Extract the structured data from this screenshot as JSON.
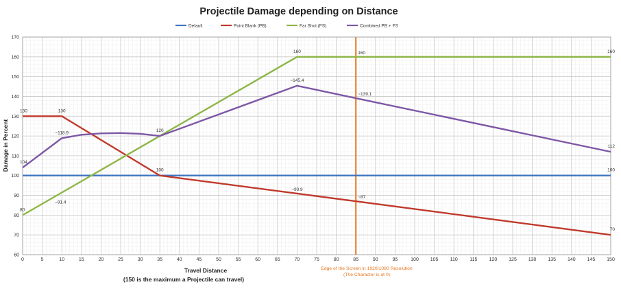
{
  "chart_data": {
    "type": "line",
    "title": "Projectile Damage depending on Distance",
    "xlabel": "Travel Distance",
    "xlabel_note": "(150 is the maximum a Projectile can travel)",
    "ylabel": "Damage in Percent",
    "xlim": [
      0,
      150
    ],
    "ylim": [
      60,
      170
    ],
    "x_ticks": [
      0,
      5,
      10,
      15,
      20,
      25,
      30,
      35,
      40,
      45,
      50,
      55,
      60,
      65,
      70,
      75,
      80,
      85,
      90,
      95,
      100,
      105,
      110,
      115,
      120,
      125,
      130,
      135,
      140,
      145,
      150
    ],
    "y_ticks": [
      60,
      70,
      80,
      90,
      100,
      110,
      120,
      130,
      140,
      150,
      160,
      170
    ],
    "grid": true,
    "legend_position": "top-center",
    "series": [
      {
        "name": "Default",
        "color": "#3e74c2",
        "x": [
          0,
          150
        ],
        "y": [
          100,
          100
        ]
      },
      {
        "name": "Point Blank (PB)",
        "color": "#c0392b",
        "x": [
          0,
          10,
          35,
          70,
          85,
          150
        ],
        "y": [
          130,
          130,
          100,
          90.9,
          87,
          70
        ]
      },
      {
        "name": "Far Shot (FS)",
        "color": "#8db646",
        "x": [
          0,
          10,
          35,
          70,
          85,
          150
        ],
        "y": [
          80,
          91.4,
          120,
          160,
          160,
          160
        ]
      },
      {
        "name": "Combined PB + FS",
        "color": "#7e57a6",
        "x": [
          0,
          10,
          15,
          20,
          25,
          30,
          35,
          70,
          85,
          150
        ],
        "y": [
          104,
          118.9,
          120.6,
          121.3,
          121.5,
          121.1,
          120,
          145.4,
          139.1,
          112
        ]
      }
    ],
    "data_labels": [
      {
        "x": 0,
        "y": 130,
        "text": "130"
      },
      {
        "x": 10,
        "y": 130,
        "text": "130"
      },
      {
        "x": 10,
        "y": 118.9,
        "text": "~118.9"
      },
      {
        "x": 0,
        "y": 104,
        "text": "104"
      },
      {
        "x": 10,
        "y": 91.4,
        "text": "~91.4"
      },
      {
        "x": 0,
        "y": 80,
        "text": "80"
      },
      {
        "x": 35,
        "y": 120,
        "text": "120"
      },
      {
        "x": 35,
        "y": 100,
        "text": "100"
      },
      {
        "x": 70,
        "y": 160,
        "text": "160"
      },
      {
        "x": 70,
        "y": 145.4,
        "text": "~145.4"
      },
      {
        "x": 70,
        "y": 90.9,
        "text": "~90.9"
      },
      {
        "x": 85,
        "y": 160,
        "text": "160"
      },
      {
        "x": 85,
        "y": 139.1,
        "text": "~139.1"
      },
      {
        "x": 85,
        "y": 87,
        "text": "~87"
      },
      {
        "x": 150,
        "y": 160,
        "text": "160"
      },
      {
        "x": 150,
        "y": 112,
        "text": "112"
      },
      {
        "x": 150,
        "y": 100,
        "text": "100"
      },
      {
        "x": 150,
        "y": 70,
        "text": "70"
      }
    ],
    "marker": {
      "x": 85,
      "color": "#e6761e",
      "label_line1": "Edge of the Screen in 1920/1080 Resolution",
      "label_line2": "(The Character is at 0)"
    }
  }
}
